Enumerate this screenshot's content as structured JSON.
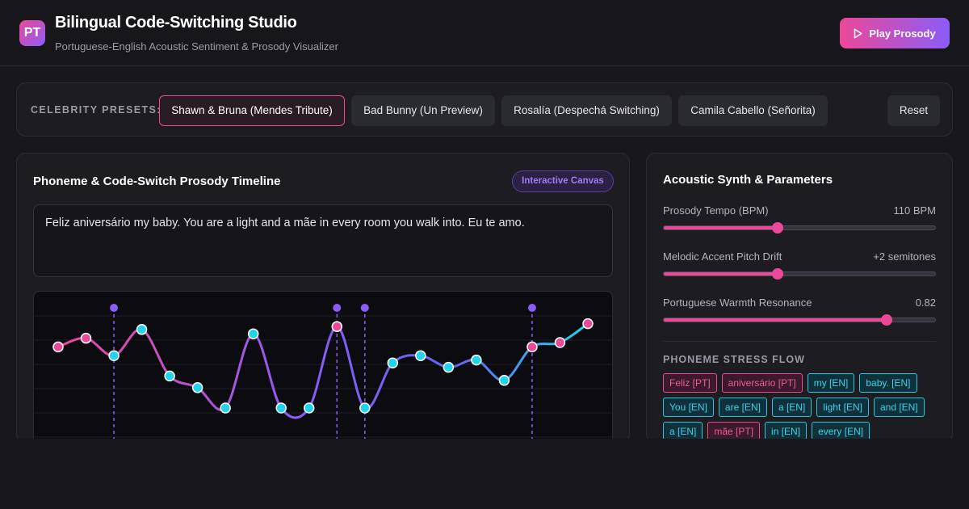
{
  "header": {
    "logo_text": "PT",
    "title": "Bilingual Code-Switching Studio",
    "subtitle": "Portuguese-English Acoustic Sentiment & Prosody Visualizer",
    "play_label": "Play Prosody"
  },
  "presets": {
    "label": "CELEBRITY PRESETS:",
    "items": [
      {
        "label": "Shawn & Bruna (Mendes Tribute)",
        "active": true
      },
      {
        "label": "Bad Bunny (Un Preview)",
        "active": false
      },
      {
        "label": "Rosalía (Despechá Switching)",
        "active": false
      },
      {
        "label": "Camila Cabello (Señorita)",
        "active": false
      }
    ],
    "reset_label": "Reset"
  },
  "timeline": {
    "title": "Phoneme & Code-Switch Prosody Timeline",
    "badge": "Interactive Canvas",
    "lyrics": "Feliz aniversário my baby. You are a light and a mãe in every room you walk into. Eu te amo.",
    "points": [
      {
        "lang": "pt",
        "v": 0.62
      },
      {
        "lang": "pt",
        "v": 0.68
      },
      {
        "lang": "en",
        "v": 0.56
      },
      {
        "lang": "en",
        "v": 0.74
      },
      {
        "lang": "en",
        "v": 0.42
      },
      {
        "lang": "en",
        "v": 0.34
      },
      {
        "lang": "en",
        "v": 0.2
      },
      {
        "lang": "en",
        "v": 0.71
      },
      {
        "lang": "en",
        "v": 0.2
      },
      {
        "lang": "en",
        "v": 0.2
      },
      {
        "lang": "pt",
        "v": 0.76
      },
      {
        "lang": "en",
        "v": 0.2
      },
      {
        "lang": "en",
        "v": 0.51
      },
      {
        "lang": "en",
        "v": 0.56
      },
      {
        "lang": "en",
        "v": 0.48
      },
      {
        "lang": "en",
        "v": 0.53
      },
      {
        "lang": "en",
        "v": 0.39
      },
      {
        "lang": "pt",
        "v": 0.62
      },
      {
        "lang": "pt",
        "v": 0.65
      },
      {
        "lang": "pt",
        "v": 0.78
      }
    ],
    "switch_indices": [
      2,
      10,
      11,
      17
    ]
  },
  "synth": {
    "title": "Acoustic Synth & Parameters",
    "params": [
      {
        "label": "Prosody Tempo (BPM)",
        "value": "110 BPM",
        "fraction": 0.42
      },
      {
        "label": "Melodic Accent Pitch Drift",
        "value": "+2 semitones",
        "fraction": 0.42
      },
      {
        "label": "Portuguese Warmth Resonance",
        "value": "0.82",
        "fraction": 0.82
      }
    ],
    "stress_title": "PHONEME STRESS FLOW",
    "tags": [
      {
        "text": "Feliz [PT]",
        "lang": "pt"
      },
      {
        "text": "aniversário [PT]",
        "lang": "pt"
      },
      {
        "text": "my [EN]",
        "lang": "en"
      },
      {
        "text": "baby. [EN]",
        "lang": "en"
      },
      {
        "text": "You [EN]",
        "lang": "en"
      },
      {
        "text": "are [EN]",
        "lang": "en"
      },
      {
        "text": "a [EN]",
        "lang": "en"
      },
      {
        "text": "light [EN]",
        "lang": "en"
      },
      {
        "text": "and [EN]",
        "lang": "en"
      },
      {
        "text": "a [EN]",
        "lang": "en"
      },
      {
        "text": "mãe [PT]",
        "lang": "pt"
      },
      {
        "text": "in [EN]",
        "lang": "en"
      },
      {
        "text": "every [EN]",
        "lang": "en"
      }
    ]
  },
  "colors": {
    "pt": "#ec4899",
    "en": "#22d3ee",
    "accent": "#8b5cf6"
  }
}
